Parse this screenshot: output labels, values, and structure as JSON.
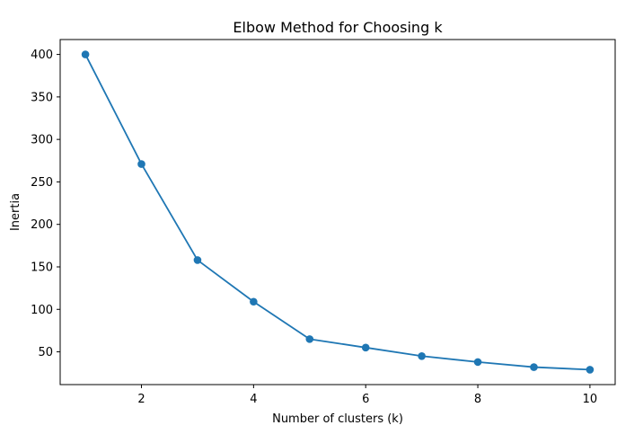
{
  "chart_data": {
    "type": "line",
    "title": "Elbow Method for Choosing k",
    "xlabel": "Number of clusters (k)",
    "ylabel": "Inertia",
    "x": [
      1,
      2,
      3,
      4,
      5,
      6,
      7,
      8,
      9,
      10
    ],
    "series": [
      {
        "values": [
          400,
          271,
          158,
          109,
          65,
          55,
          45,
          38,
          32,
          29
        ],
        "color": "#1f77b4",
        "marker": "circle"
      }
    ],
    "xlim": [
      0.55,
      10.45
    ],
    "ylim": [
      11.45,
      417.55
    ],
    "xticks": [
      2,
      4,
      6,
      8,
      10
    ],
    "yticks": [
      50,
      100,
      150,
      200,
      250,
      300,
      350,
      400
    ],
    "grid": false,
    "legend": false
  }
}
